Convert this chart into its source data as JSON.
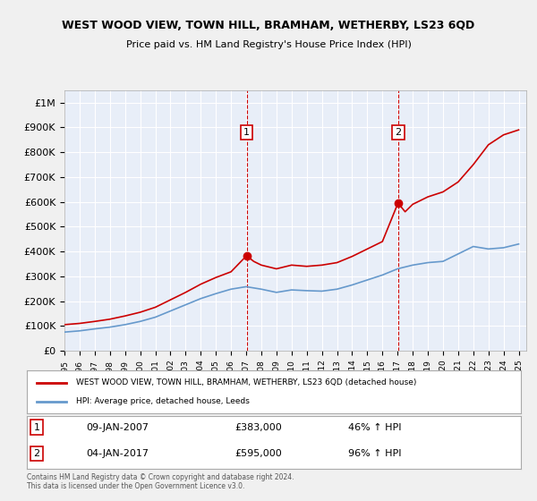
{
  "title": "WEST WOOD VIEW, TOWN HILL, BRAMHAM, WETHERBY, LS23 6QD",
  "subtitle": "Price paid vs. HM Land Registry's House Price Index (HPI)",
  "legend_line1": "WEST WOOD VIEW, TOWN HILL, BRAMHAM, WETHERBY, LS23 6QD (detached house)",
  "legend_line2": "HPI: Average price, detached house, Leeds",
  "annotation1_label": "1",
  "annotation1_date": "09-JAN-2007",
  "annotation1_price": "£383,000",
  "annotation1_hpi": "46% ↑ HPI",
  "annotation1_year": 2007.03,
  "annotation1_value": 383000,
  "annotation2_label": "2",
  "annotation2_date": "04-JAN-2017",
  "annotation2_price": "£595,000",
  "annotation2_hpi": "96% ↑ HPI",
  "annotation2_year": 2017.03,
  "annotation2_value": 595000,
  "footnote1": "Contains HM Land Registry data © Crown copyright and database right 2024.",
  "footnote2": "This data is licensed under the Open Government Licence v3.0.",
  "background_color": "#e8eef8",
  "plot_bg_color": "#e8eef8",
  "red_line_color": "#cc0000",
  "blue_line_color": "#6699cc",
  "grid_color": "#ffffff",
  "ylim": [
    0,
    1050000
  ],
  "xlim_start": 1995,
  "xlim_end": 2025.5,
  "hpi_years": [
    1995,
    1996,
    1997,
    1998,
    1999,
    2000,
    2001,
    2002,
    2003,
    2004,
    2005,
    2006,
    2007,
    2008,
    2009,
    2010,
    2011,
    2012,
    2013,
    2014,
    2015,
    2016,
    2017,
    2018,
    2019,
    2020,
    2021,
    2022,
    2023,
    2024,
    2025
  ],
  "hpi_values": [
    75000,
    80000,
    88000,
    95000,
    105000,
    118000,
    135000,
    160000,
    185000,
    210000,
    230000,
    248000,
    258000,
    248000,
    235000,
    245000,
    242000,
    240000,
    248000,
    265000,
    285000,
    305000,
    330000,
    345000,
    355000,
    360000,
    390000,
    420000,
    410000,
    415000,
    430000
  ],
  "red_years": [
    1995,
    1996,
    1997,
    1998,
    1999,
    2000,
    2001,
    2002,
    2003,
    2004,
    2005,
    2006,
    2007.03,
    2007.5,
    2008,
    2009,
    2010,
    2011,
    2012,
    2013,
    2014,
    2015,
    2016,
    2017.03,
    2017.5,
    2018,
    2019,
    2020,
    2021,
    2022,
    2023,
    2024,
    2025
  ],
  "red_values": [
    105000,
    110000,
    118000,
    127000,
    140000,
    155000,
    175000,
    205000,
    235000,
    268000,
    295000,
    318000,
    383000,
    360000,
    345000,
    330000,
    345000,
    340000,
    345000,
    355000,
    380000,
    410000,
    440000,
    595000,
    560000,
    590000,
    620000,
    640000,
    680000,
    750000,
    830000,
    870000,
    890000
  ]
}
